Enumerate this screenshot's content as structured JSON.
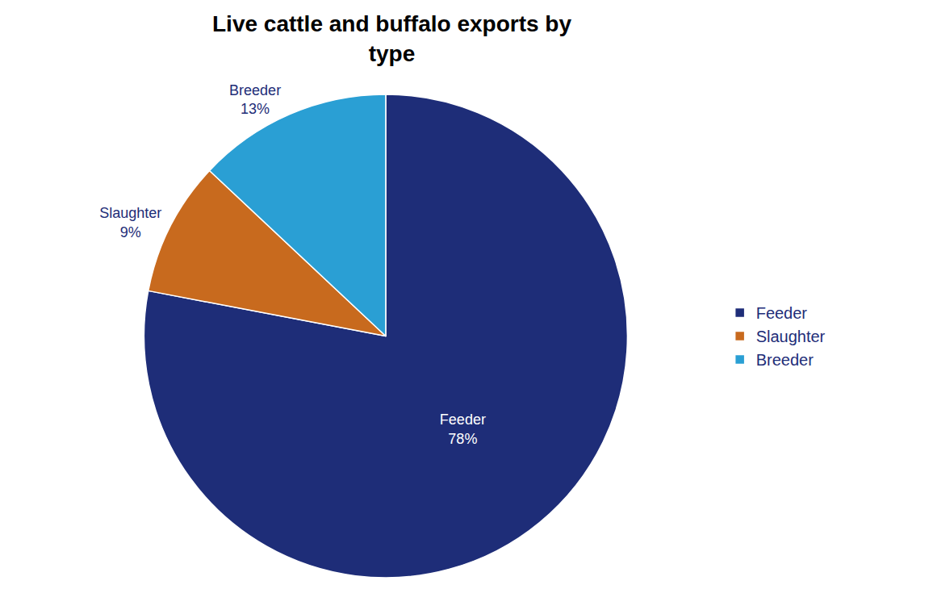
{
  "chart_data": {
    "type": "pie",
    "title": "Live cattle and buffalo exports by\ntype",
    "categories": [
      "Feeder",
      "Slaughter",
      "Breeder"
    ],
    "values": [
      78,
      9,
      13
    ],
    "value_labels": [
      "Feeder\n78%",
      "Slaughter\n9%",
      "Breeder\n13%"
    ],
    "colors": [
      "#1e2d78",
      "#c86a1e",
      "#2a9fd4"
    ],
    "data_labels": true,
    "legend": "right"
  }
}
